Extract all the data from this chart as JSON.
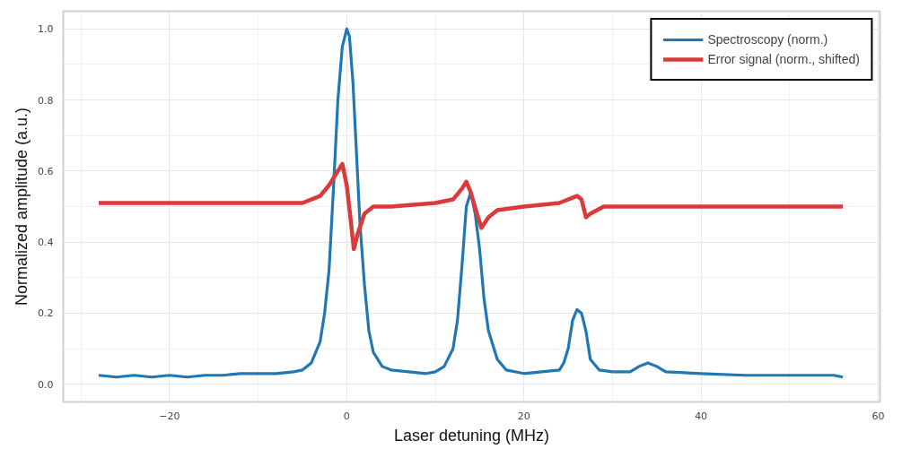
{
  "chart_data": {
    "type": "line",
    "xlabel": "Laser detuning (MHz)",
    "ylabel": "Normalized amplitude (a.u.)",
    "xlim": [
      -32,
      60.2
    ],
    "ylim": [
      -0.05,
      1.05
    ],
    "xticks": [
      {
        "value": -20,
        "label": "−20"
      },
      0,
      20,
      40,
      60
    ],
    "yticks": [
      {
        "value": 0,
        "label": "0.0"
      },
      0.2,
      0.4,
      0.6,
      0.8,
      {
        "value": 1,
        "label": "1.0"
      }
    ],
    "grid": true,
    "legend": "top right",
    "marker": "none",
    "line_style": "solid",
    "series": [
      {
        "name": "Spectroscopy (norm.)",
        "color": "#1f77b4",
        "x": [
          -28,
          -26,
          -24,
          -22,
          -20,
          -18,
          -16,
          -14,
          -12,
          -10,
          -8,
          -6,
          -5,
          -4,
          -3,
          -2.5,
          -2,
          -1.5,
          -1,
          -0.5,
          0,
          0.3,
          0.7,
          1,
          1.5,
          2,
          2.5,
          3,
          4,
          5,
          7,
          9,
          10,
          11,
          12,
          12.5,
          13,
          13.5,
          14,
          14.5,
          15,
          15.5,
          16,
          17,
          18,
          20,
          22,
          24,
          24.5,
          25,
          25.5,
          26,
          26.5,
          27,
          27.5,
          28.5,
          30,
          32,
          33,
          34,
          35,
          36,
          40,
          45,
          50,
          55,
          56
        ],
        "values": [
          0.025,
          0.02,
          0.025,
          0.02,
          0.025,
          0.02,
          0.025,
          0.025,
          0.03,
          0.03,
          0.03,
          0.035,
          0.04,
          0.06,
          0.12,
          0.2,
          0.32,
          0.55,
          0.8,
          0.95,
          1.0,
          0.98,
          0.85,
          0.7,
          0.45,
          0.28,
          0.15,
          0.09,
          0.05,
          0.04,
          0.035,
          0.03,
          0.035,
          0.05,
          0.1,
          0.18,
          0.33,
          0.5,
          0.54,
          0.48,
          0.38,
          0.24,
          0.15,
          0.07,
          0.04,
          0.03,
          0.035,
          0.04,
          0.06,
          0.1,
          0.18,
          0.21,
          0.2,
          0.15,
          0.07,
          0.04,
          0.035,
          0.035,
          0.05,
          0.06,
          0.05,
          0.035,
          0.03,
          0.025,
          0.025,
          0.025,
          0.02
        ]
      },
      {
        "name": "Error signal (norm., shifted)",
        "color": "#d93a3a",
        "x": [
          -28,
          -20,
          -10,
          -5,
          -3,
          -2,
          -1,
          -0.5,
          0,
          0.5,
          0.8,
          1.2,
          2,
          3,
          5,
          10,
          12,
          13,
          13.5,
          14,
          14.7,
          15.2,
          16,
          17,
          20,
          24,
          26,
          26.5,
          27,
          27.5,
          29,
          35,
          45,
          56
        ],
        "values": [
          0.51,
          0.51,
          0.51,
          0.51,
          0.53,
          0.56,
          0.6,
          0.62,
          0.56,
          0.45,
          0.38,
          0.42,
          0.48,
          0.5,
          0.5,
          0.51,
          0.52,
          0.55,
          0.57,
          0.54,
          0.48,
          0.44,
          0.47,
          0.49,
          0.5,
          0.51,
          0.53,
          0.52,
          0.47,
          0.48,
          0.5,
          0.5,
          0.5,
          0.5
        ]
      }
    ]
  }
}
